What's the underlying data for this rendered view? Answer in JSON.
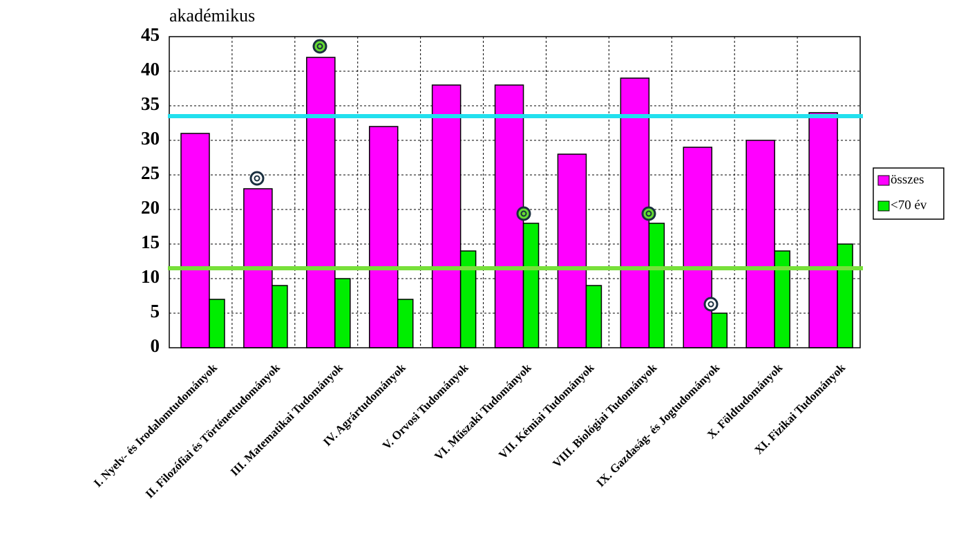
{
  "chart_data": {
    "type": "bar",
    "title": "akadémikus",
    "categories": [
      "I. Nyelv- és Irodalomtudományok",
      "II. Filozófiai és Történettudományok",
      "III. Matematikai Tudományok",
      "IV. Agrártudományok",
      "V. Orvosi Tudományok",
      "VI. Műszaki Tudományok",
      "VII. Kémiai Tudományok",
      "VIII. Biológiai Tudományok",
      "IX. Gazdaság- és Jogtudományok",
      "X. Földtudományok",
      "XI. Fizikai Tudományok"
    ],
    "series": [
      {
        "name": "összes",
        "color": "#ff00ff",
        "values": [
          31,
          23,
          42,
          32,
          38,
          38,
          28,
          39,
          29,
          30,
          34
        ]
      },
      {
        "name": "<70 év",
        "color": "#00ee00",
        "values": [
          7,
          9,
          10,
          7,
          14,
          18,
          9,
          18,
          5,
          14,
          15
        ]
      }
    ],
    "ylim": [
      0,
      45
    ],
    "yticks": [
      0,
      5,
      10,
      15,
      20,
      25,
      30,
      35,
      40,
      45
    ],
    "grid": true,
    "reference_lines": [
      {
        "value": 33.5,
        "color": "#22e0ee"
      },
      {
        "value": 11.5,
        "color": "#77e03a"
      }
    ],
    "legend": "right"
  }
}
